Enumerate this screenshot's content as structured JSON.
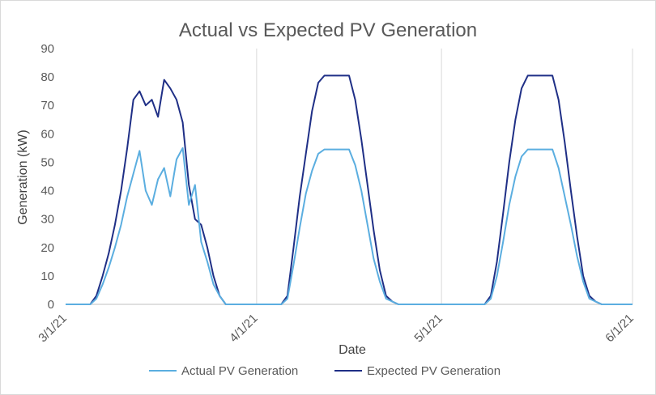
{
  "chart_data": {
    "type": "line",
    "title": "Actual vs Expected PV Generation",
    "xlabel": "Date",
    "ylabel": "Generation (kW)",
    "ylim": [
      0,
      90
    ],
    "yticks": [
      0,
      10,
      20,
      30,
      40,
      50,
      60,
      70,
      80,
      90
    ],
    "xlim": [
      "3/1/21",
      "6/1/21"
    ],
    "xticks": [
      "3/1/21",
      "4/1/21",
      "5/1/21",
      "6/1/21"
    ],
    "grid": {
      "vertical": true,
      "horizontal": false
    },
    "legend": "bottom",
    "colors": {
      "actual": "#5baee0",
      "expected": "#1f2f86",
      "grid": "#d9d9d9",
      "axis": "#bfbfbf"
    },
    "series": [
      {
        "name": "Actual PV Generation",
        "x": [
          "3/1/21",
          "3/5/21",
          "3/6/21",
          "3/7/21",
          "3/8/21",
          "3/9/21",
          "3/10/21",
          "3/11/21",
          "3/12/21",
          "3/13/21",
          "3/14/21",
          "3/15/21",
          "3/16/21",
          "3/17/21",
          "3/18/21",
          "3/19/21",
          "3/20/21",
          "3/21/21",
          "3/22/21",
          "3/23/21",
          "3/24/21",
          "3/25/21",
          "3/26/21",
          "3/27/21",
          "3/28/21",
          "3/29/21",
          "3/30/21",
          "4/1/21",
          "4/5/21",
          "4/6/21",
          "4/7/21",
          "4/8/21",
          "4/9/21",
          "4/10/21",
          "4/11/21",
          "4/12/21",
          "4/13/21",
          "4/14/21",
          "4/15/21",
          "4/16/21",
          "4/17/21",
          "4/18/21",
          "4/19/21",
          "4/20/21",
          "4/21/21",
          "4/22/21",
          "4/23/21",
          "4/24/21",
          "4/25/21",
          "4/26/21",
          "4/27/21",
          "4/28/21",
          "4/29/21",
          "5/1/21",
          "5/8/21",
          "5/9/21",
          "5/10/21",
          "5/11/21",
          "5/12/21",
          "5/13/21",
          "5/14/21",
          "5/15/21",
          "5/16/21",
          "5/17/21",
          "5/18/21",
          "5/19/21",
          "5/20/21",
          "5/21/21",
          "5/22/21",
          "5/23/21",
          "5/24/21",
          "5/25/21",
          "5/26/21",
          "5/27/21",
          "5/28/21",
          "6/1/21"
        ],
        "values": [
          0,
          0,
          2,
          7,
          13,
          20,
          28,
          38,
          46,
          54,
          40,
          35,
          44,
          48,
          38,
          51,
          55,
          35,
          42,
          22,
          15,
          7,
          3,
          0,
          0,
          0,
          0,
          0,
          0,
          2,
          14,
          27,
          39,
          47,
          53,
          54.5,
          54.5,
          54.5,
          54.5,
          54.5,
          49,
          40,
          28,
          16,
          8,
          2,
          1,
          0,
          0,
          0,
          0,
          0,
          0,
          0,
          0,
          2,
          10,
          22,
          35,
          45,
          52,
          54.5,
          54.5,
          54.5,
          54.5,
          54.5,
          48,
          38,
          28,
          17,
          8,
          2,
          1,
          0,
          0,
          0
        ]
      },
      {
        "name": "Expected PV Generation",
        "x": [
          "3/1/21",
          "3/5/21",
          "3/6/21",
          "3/7/21",
          "3/8/21",
          "3/9/21",
          "3/10/21",
          "3/11/21",
          "3/12/21",
          "3/13/21",
          "3/14/21",
          "3/15/21",
          "3/16/21",
          "3/17/21",
          "3/18/21",
          "3/19/21",
          "3/20/21",
          "3/21/21",
          "3/22/21",
          "3/23/21",
          "3/24/21",
          "3/25/21",
          "3/26/21",
          "3/27/21",
          "3/28/21",
          "3/29/21",
          "3/30/21",
          "4/1/21",
          "4/5/21",
          "4/6/21",
          "4/7/21",
          "4/8/21",
          "4/9/21",
          "4/10/21",
          "4/11/21",
          "4/12/21",
          "4/13/21",
          "4/14/21",
          "4/15/21",
          "4/16/21",
          "4/17/21",
          "4/18/21",
          "4/19/21",
          "4/20/21",
          "4/21/21",
          "4/22/21",
          "4/23/21",
          "4/24/21",
          "4/25/21",
          "4/26/21",
          "4/27/21",
          "4/28/21",
          "4/29/21",
          "5/1/21",
          "5/8/21",
          "5/9/21",
          "5/10/21",
          "5/11/21",
          "5/12/21",
          "5/13/21",
          "5/14/21",
          "5/15/21",
          "5/16/21",
          "5/17/21",
          "5/18/21",
          "5/19/21",
          "5/20/21",
          "5/21/21",
          "5/22/21",
          "5/23/21",
          "5/24/21",
          "5/25/21",
          "5/26/21",
          "5/27/21",
          "5/28/21",
          "6/1/21"
        ],
        "values": [
          0,
          0,
          3,
          10,
          18,
          28,
          40,
          55,
          72,
          75,
          70,
          72,
          66,
          79,
          76,
          72,
          64,
          42,
          30,
          28,
          20,
          10,
          3,
          0,
          0,
          0,
          0,
          0,
          0,
          3,
          20,
          38,
          53,
          68,
          78,
          80.5,
          80.5,
          80.5,
          80.5,
          80.5,
          72,
          58,
          42,
          26,
          12,
          3,
          1,
          0,
          0,
          0,
          0,
          0,
          0,
          0,
          0,
          3,
          15,
          32,
          50,
          65,
          76,
          80.5,
          80.5,
          80.5,
          80.5,
          80.5,
          72,
          57,
          40,
          24,
          10,
          3,
          1,
          0,
          0,
          0
        ]
      }
    ]
  }
}
